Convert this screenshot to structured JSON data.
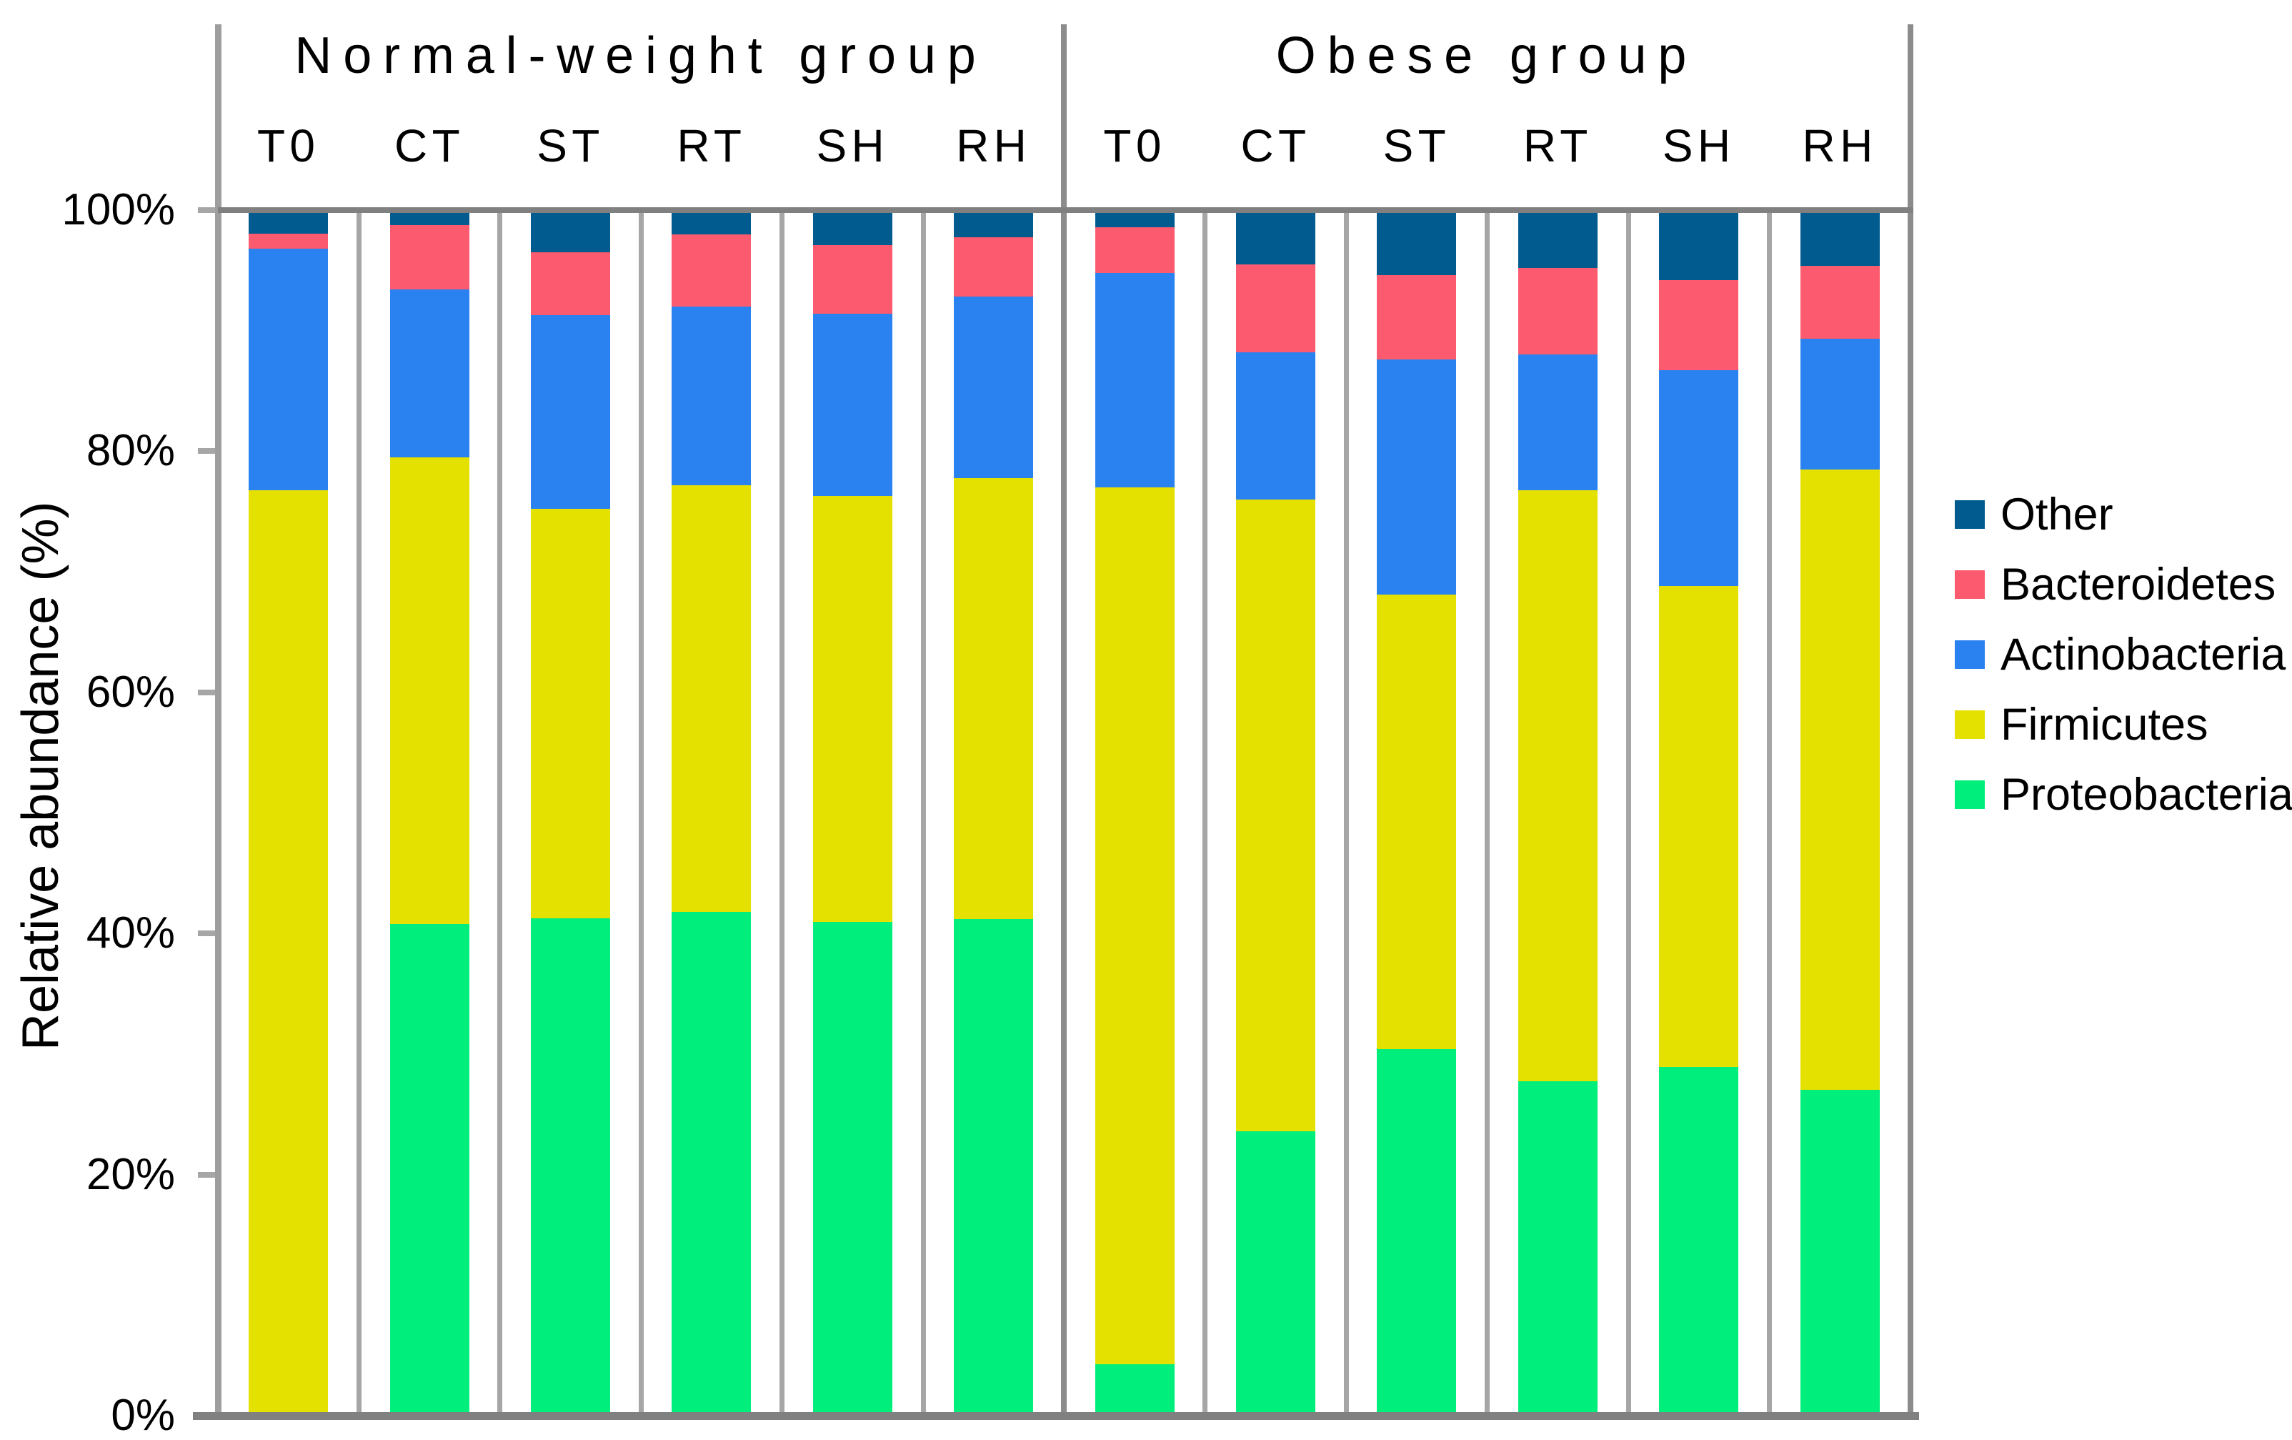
{
  "chart_data": {
    "type": "bar",
    "stacked": true,
    "orientation": "vertical",
    "ylabel": "Relative abundance (%)",
    "ylim": [
      0,
      100
    ],
    "ytick_labels": [
      "0%",
      "20%",
      "40%",
      "60%",
      "80%",
      "100%"
    ],
    "grid": false,
    "legend_position": "right",
    "groups": [
      {
        "label": "Normal-weight group",
        "categories": [
          "T0",
          "CT",
          "ST",
          "RT",
          "SH",
          "RH"
        ]
      },
      {
        "label": "Obese group",
        "categories": [
          "T0",
          "CT",
          "ST",
          "RT",
          "SH",
          "RH"
        ]
      }
    ],
    "categories": [
      "T0",
      "CT",
      "ST",
      "RT",
      "SH",
      "RH",
      "T0",
      "CT",
      "ST",
      "RT",
      "SH",
      "RH"
    ],
    "series": [
      {
        "name": "Proteobacteria",
        "color": "#00EE7B",
        "values": [
          0.0,
          40.7,
          41.2,
          41.7,
          40.9,
          41.1,
          4.0,
          23.4,
          30.3,
          27.6,
          28.8,
          26.9
        ]
      },
      {
        "name": "Firmicutes",
        "color": "#E4E000",
        "values": [
          76.9,
          38.9,
          34.1,
          35.6,
          35.5,
          36.8,
          73.1,
          52.7,
          37.9,
          49.3,
          40.1,
          51.7
        ]
      },
      {
        "name": "Actinobacteria",
        "color": "#2A82F0",
        "values": [
          20.1,
          14.0,
          16.2,
          14.9,
          15.2,
          15.1,
          17.9,
          12.3,
          19.6,
          11.3,
          18.0,
          10.9
        ]
      },
      {
        "name": "Bacteroidetes",
        "color": "#FC5A6E",
        "values": [
          1.3,
          5.4,
          5.2,
          6.0,
          5.7,
          5.0,
          3.8,
          7.3,
          7.0,
          7.2,
          7.5,
          6.1
        ]
      },
      {
        "name": "Other",
        "color": "#015B8E",
        "values": [
          1.7,
          1.0,
          3.3,
          1.8,
          2.7,
          2.0,
          1.2,
          4.3,
          5.2,
          4.6,
          5.6,
          4.4
        ]
      }
    ],
    "legend": [
      "Other",
      "Bacteroidetes",
      "Actinobacteria",
      "Firmicutes",
      "Proteobacteria"
    ]
  },
  "colors": {
    "frame_gray": "#808080",
    "separator_gray": "#A6A6A6",
    "divider_gray": "#8C8C8C",
    "axis_gray": "#9E9E9E"
  }
}
